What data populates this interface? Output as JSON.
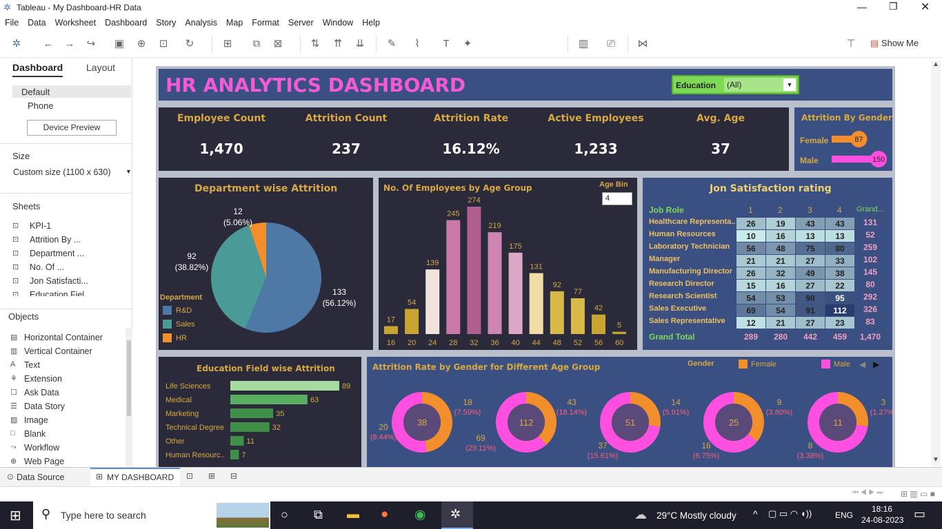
{
  "window": {
    "title": "Tableau - My Dashboard-HR Data"
  },
  "menu": [
    "File",
    "Data",
    "Worksheet",
    "Dashboard",
    "Story",
    "Analysis",
    "Map",
    "Format",
    "Server",
    "Window",
    "Help"
  ],
  "toolbar": {
    "show_me": "Show Me"
  },
  "left": {
    "tab_dashboard": "Dashboard",
    "tab_layout": "Layout",
    "default": "Default",
    "phone": "Phone",
    "device_preview": "Device Preview",
    "size_title": "Size",
    "size_value": "Custom size (1100 x 630)",
    "sheets_title": "Sheets",
    "sheets": [
      "KPI-1",
      "Attrition By ...",
      "Department ...",
      "No. Of ...",
      "Jon Satisfacti...",
      "Education Fiel..."
    ],
    "objects_title": "Objects",
    "objects": [
      "Horizontal Container",
      "Vertical Container",
      "Text",
      "Extension",
      "Ask Data",
      "Data Story",
      "Image",
      "Blank",
      "Workflow",
      "Web Page"
    ]
  },
  "dashboard": {
    "title": "HR ANALYTICS DASHBOARD",
    "filter": {
      "label": "Education",
      "value": "(All)"
    },
    "kpis": [
      {
        "label": "Employee Count",
        "value": "1,470"
      },
      {
        "label": "Attrition Count",
        "value": "237"
      },
      {
        "label": "Attrition Rate",
        "value": "16.12%"
      },
      {
        "label": "Active Employees",
        "value": "1,233"
      },
      {
        "label": "Avg. Age",
        "value": "37"
      }
    ],
    "gender": {
      "title": "Attrition By Gender",
      "rows": [
        {
          "label": "Female",
          "value": 87,
          "color": "#f28e2b"
        },
        {
          "label": "Male",
          "value": 150,
          "color": "#ff4fe0"
        }
      ]
    },
    "dept": {
      "title": "Department wise Attrition",
      "legend_title": "Department",
      "legend": [
        {
          "name": "R&D",
          "color": "#4e79a7"
        },
        {
          "name": "Sales",
          "color": "#4a9a97"
        },
        {
          "name": "HR",
          "color": "#f28e2b"
        }
      ],
      "labels": [
        {
          "value": "133",
          "pct": "(56.12%)"
        },
        {
          "value": "92",
          "pct": "(38.82%)"
        },
        {
          "value": "12",
          "pct": "(5.06%)"
        }
      ]
    },
    "age": {
      "title": "No. Of Employees by Age Group",
      "bin_label": "Age Bin",
      "bin_value": "4"
    },
    "job": {
      "title": "Jon Satisfaction rating",
      "header": "Job Role",
      "cols": [
        "1",
        "2",
        "3",
        "4",
        "Grand..."
      ],
      "total_label": "Grand Total",
      "totals": [
        "289",
        "280",
        "442",
        "459",
        "1,470"
      ]
    },
    "edu": {
      "title": "Education Field wise Attrition"
    },
    "donut": {
      "title": "Attrition Rate by Gender for Different Age Group",
      "legend_title": "Gender",
      "female": "Female",
      "male": "Male"
    }
  },
  "chart_data": [
    {
      "type": "pie",
      "title": "Department wise Attrition",
      "categories": [
        "R&D",
        "Sales",
        "HR"
      ],
      "values": [
        133,
        92,
        12
      ],
      "colors": [
        "#4e79a7",
        "#4a9a97",
        "#f28e2b"
      ]
    },
    {
      "type": "bar",
      "title": "No. Of Employees by Age Group",
      "categories": [
        "16",
        "20",
        "24",
        "28",
        "32",
        "36",
        "40",
        "44",
        "48",
        "52",
        "56",
        "60"
      ],
      "values": [
        17,
        54,
        139,
        245,
        274,
        219,
        175,
        131,
        92,
        77,
        42,
        5
      ],
      "colors": [
        "#c8a430",
        "#c8a430",
        "#efe3dc",
        "#c879a8",
        "#b05f90",
        "#cf85b4",
        "#dca8c8",
        "#f0dca6",
        "#d8b848",
        "#d8b848",
        "#c8a430",
        "#c8a430"
      ]
    },
    {
      "type": "heatmap",
      "title": "Jon Satisfaction rating",
      "rows": [
        "Healthcare Representa...",
        "Human Resources",
        "Laboratory Technician",
        "Manager",
        "Manufacturing Director",
        "Research Director",
        "Research Scientist",
        "Sales Executive",
        "Sales Representative"
      ],
      "columns": [
        "1",
        "2",
        "3",
        "4"
      ],
      "values": [
        [
          26,
          19,
          43,
          43
        ],
        [
          10,
          16,
          13,
          13
        ],
        [
          56,
          48,
          75,
          80
        ],
        [
          21,
          21,
          27,
          33
        ],
        [
          26,
          32,
          49,
          38
        ],
        [
          15,
          16,
          27,
          22
        ],
        [
          54,
          53,
          90,
          95
        ],
        [
          69,
          54,
          91,
          112
        ],
        [
          12,
          21,
          27,
          23
        ]
      ],
      "row_totals": [
        131,
        52,
        259,
        102,
        145,
        80,
        292,
        326,
        83
      ]
    },
    {
      "type": "bar",
      "title": "Education Field wise Attrition",
      "categories": [
        "Life Sciences",
        "Medical",
        "Marketing",
        "Technical Degree",
        "Other",
        "Human Resourc.."
      ],
      "values": [
        89,
        63,
        35,
        32,
        11,
        7
      ]
    },
    {
      "type": "pie",
      "title": "Attrition Rate by Gender for Different Age Group",
      "donuts": [
        {
          "total": "38",
          "female": {
            "value": "18",
            "pct": "(7.59%)"
          },
          "male": {
            "value": "20",
            "pct": "(8.44%)"
          }
        },
        {
          "total": "112",
          "female": {
            "value": "43",
            "pct": "(18.14%)"
          },
          "male": {
            "value": "69",
            "pct": "(29.11%)"
          }
        },
        {
          "total": "51",
          "female": {
            "value": "14",
            "pct": "(5.91%)"
          },
          "male": {
            "value": "37",
            "pct": "(15.61%)"
          }
        },
        {
          "total": "25",
          "female": {
            "value": "9",
            "pct": "(3.80%)"
          },
          "male": {
            "value": "16",
            "pct": "(6.75%)"
          }
        },
        {
          "total": "11",
          "female": {
            "value": "3",
            "pct": "(1.27%)"
          },
          "male": {
            "value": "8",
            "pct": "(3.38%)"
          }
        }
      ],
      "female_values": [
        18,
        43,
        14,
        9,
        3
      ],
      "male_values": [
        20,
        69,
        37,
        16,
        8
      ]
    }
  ],
  "status": {
    "data_source": "Data Source",
    "sheet_tab": "MY DASHBOARD"
  },
  "taskbar": {
    "search": "Type here to search",
    "weather": "29°C  Mostly cloudy",
    "lang": "ENG",
    "time": "18:16",
    "date": "24-08-2023"
  }
}
